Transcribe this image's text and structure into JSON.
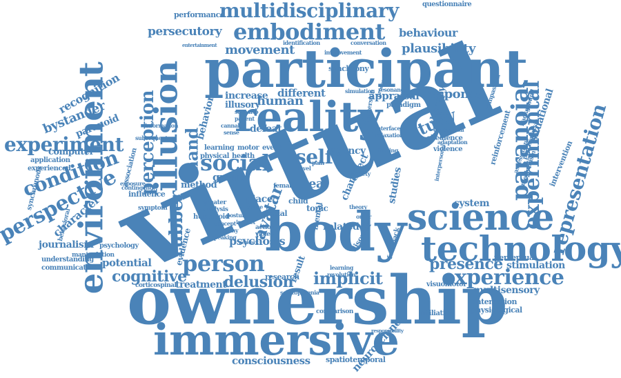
{
  "color": "#4a83b8",
  "words": [
    {
      "text": "virtual",
      "size": "xxl",
      "orient": "diag"
    },
    {
      "text": "ownership",
      "size": "xl",
      "orient": "h"
    },
    {
      "text": "participant",
      "size": "xl",
      "orient": "h"
    },
    {
      "text": "body",
      "size": "xl",
      "orient": "h"
    },
    {
      "text": "immersive",
      "size": "l",
      "orient": "h"
    },
    {
      "text": "reality",
      "size": "l",
      "orient": "h"
    },
    {
      "text": "environment",
      "size": "l",
      "orient": "v-up"
    },
    {
      "text": "illusion",
      "size": "l",
      "orient": "v-up"
    },
    {
      "text": "technology",
      "size": "l",
      "orient": "h"
    },
    {
      "text": "science",
      "size": "l",
      "orient": "h"
    },
    {
      "text": "embodiment",
      "size": "m",
      "orient": "h"
    },
    {
      "text": "multidisciplinary",
      "size": "m",
      "orient": "h"
    },
    {
      "text": "paranoia",
      "size": "m",
      "orient": "v-down"
    },
    {
      "text": "experimental",
      "size": "m",
      "orient": "v-up"
    },
    {
      "text": "representation",
      "size": "m",
      "orient": "v-up"
    },
    {
      "text": "experience",
      "size": "m",
      "orient": "h"
    },
    {
      "text": "person",
      "size": "m",
      "orient": "h"
    },
    {
      "text": "social",
      "size": "m",
      "orient": "h"
    },
    {
      "text": "perspective",
      "size": "m",
      "orient": "v-up"
    },
    {
      "text": "experiment",
      "size": "m",
      "orient": "h"
    },
    {
      "text": "condition",
      "size": "m",
      "orient": "v-up"
    },
    {
      "text": "perception",
      "size": "m",
      "orient": "v-up"
    },
    {
      "text": "self",
      "size": "m",
      "orient": "h"
    },
    {
      "text": "presence",
      "size": "m",
      "orient": "h"
    },
    {
      "text": "rubber",
      "size": "m",
      "orient": "v-up"
    },
    {
      "text": "study",
      "size": "m",
      "orient": "v-up"
    },
    {
      "text": "hand",
      "size": "m",
      "orient": "v-up"
    },
    {
      "text": "avatar",
      "size": "m",
      "orient": "v-up"
    },
    {
      "text": "cognitive",
      "size": "m",
      "orient": "h"
    },
    {
      "text": "delusion",
      "size": "m",
      "orient": "h"
    },
    {
      "text": "implicit",
      "size": "m",
      "orient": "h"
    },
    {
      "text": "consciousness",
      "size": "s",
      "orient": "h"
    },
    {
      "text": "neuroscience",
      "size": "s",
      "orient": "v-up"
    },
    {
      "text": "psychosis",
      "size": "s",
      "orient": "h"
    },
    {
      "text": "human",
      "size": "s",
      "orient": "h"
    },
    {
      "text": "movement",
      "size": "s",
      "orient": "h"
    },
    {
      "text": "plausibility",
      "size": "s",
      "orient": "h"
    },
    {
      "text": "persecutory",
      "size": "s",
      "orient": "h"
    },
    {
      "text": "behaviour",
      "size": "s",
      "orient": "h"
    },
    {
      "text": "questionnaire",
      "size": "xs",
      "orient": "h"
    },
    {
      "text": "performance",
      "size": "xs",
      "orient": "h"
    },
    {
      "text": "recognition",
      "size": "s",
      "orient": "v-up"
    },
    {
      "text": "bystander",
      "size": "s",
      "orient": "h"
    },
    {
      "text": "paranoid",
      "size": "s",
      "orient": "h"
    },
    {
      "text": "computer",
      "size": "s",
      "orient": "h"
    },
    {
      "text": "application",
      "size": "xs",
      "orient": "h"
    },
    {
      "text": "experienced",
      "size": "xs",
      "orient": "h"
    },
    {
      "text": "character",
      "size": "s",
      "orient": "v-up"
    },
    {
      "text": "journalism",
      "size": "s",
      "orient": "h"
    },
    {
      "text": "psychology",
      "size": "xs",
      "orient": "h"
    },
    {
      "text": "understanding",
      "size": "xs",
      "orient": "h"
    },
    {
      "text": "communication",
      "size": "xs",
      "orient": "h"
    },
    {
      "text": "potential",
      "size": "s",
      "orient": "h"
    },
    {
      "text": "treatment",
      "size": "s",
      "orient": "h"
    },
    {
      "text": "evidence",
      "size": "s",
      "orient": "v-up"
    },
    {
      "text": "influence",
      "size": "xs",
      "orient": "h"
    },
    {
      "text": "method",
      "size": "s",
      "orient": "h"
    },
    {
      "text": "group",
      "size": "s",
      "orient": "h"
    },
    {
      "text": "real",
      "size": "s",
      "orient": "h"
    },
    {
      "text": "agency",
      "size": "s",
      "orient": "h"
    },
    {
      "text": "increase",
      "size": "s",
      "orient": "h"
    },
    {
      "text": "different",
      "size": "s",
      "orient": "h"
    },
    {
      "text": "illusory",
      "size": "s",
      "orient": "h"
    },
    {
      "text": "defeat",
      "size": "s",
      "orient": "h"
    },
    {
      "text": "response",
      "size": "s",
      "orient": "h"
    },
    {
      "text": "appraisal",
      "size": "s",
      "orient": "h"
    },
    {
      "text": "therapy",
      "size": "s",
      "orient": "v-up"
    },
    {
      "text": "system",
      "size": "s",
      "orient": "h"
    },
    {
      "text": "perceptual",
      "size": "xs",
      "orient": "h"
    },
    {
      "text": "stimulation",
      "size": "xs",
      "orient": "h"
    },
    {
      "text": "multisensory",
      "size": "s",
      "orient": "h"
    },
    {
      "text": "interaction",
      "size": "xs",
      "orient": "h"
    },
    {
      "text": "physiological",
      "size": "xs",
      "orient": "h"
    },
    {
      "text": "visuomotor",
      "size": "xs",
      "orient": "h"
    },
    {
      "text": "situational",
      "size": "s",
      "orient": "v-up"
    },
    {
      "text": "reinforcement",
      "size": "xs",
      "orient": "v-up"
    },
    {
      "text": "intervention",
      "size": "xs",
      "orient": "v-up"
    },
    {
      "text": "violence",
      "size": "xs",
      "orient": "h"
    },
    {
      "text": "obedience",
      "size": "xs",
      "orient": "h"
    },
    {
      "text": "behavior",
      "size": "s",
      "orient": "v-up"
    },
    {
      "text": "studies",
      "size": "s",
      "orient": "v-up"
    },
    {
      "text": "change",
      "size": "s",
      "orient": "v-up"
    },
    {
      "text": "related",
      "size": "s",
      "orient": "h"
    },
    {
      "text": "place",
      "size": "s",
      "orient": "h"
    },
    {
      "text": "topic",
      "size": "xs",
      "orient": "h"
    },
    {
      "text": "result",
      "size": "s",
      "orient": "v-up"
    },
    {
      "text": "research",
      "size": "xs",
      "orient": "h"
    },
    {
      "text": "disorder",
      "size": "xs",
      "orient": "v-up"
    },
    {
      "text": "synchrony",
      "size": "xs",
      "orient": "h"
    },
    {
      "text": "paradigm",
      "size": "xs",
      "orient": "h"
    },
    {
      "text": "learning",
      "size": "xs",
      "orient": "h"
    },
    {
      "text": "motor",
      "size": "xs",
      "orient": "h"
    },
    {
      "text": "event",
      "size": "xs",
      "orient": "h"
    },
    {
      "text": "physical",
      "size": "xs",
      "orient": "h"
    },
    {
      "text": "health",
      "size": "xs",
      "orient": "h"
    },
    {
      "text": "association",
      "size": "xs",
      "orient": "v-up"
    },
    {
      "text": "humanoid",
      "size": "xs",
      "orient": "h"
    },
    {
      "text": "corticospinal",
      "size": "xs",
      "orient": "h"
    },
    {
      "text": "comparison",
      "size": "xs",
      "orient": "h"
    },
    {
      "text": "affiliation",
      "size": "xs",
      "orient": "h"
    },
    {
      "text": "spatiotemporal",
      "size": "xs",
      "orient": "h"
    },
    {
      "text": "feedback",
      "size": "xs",
      "orient": "v-up"
    },
    {
      "text": "compassion",
      "size": "xs",
      "orient": "v-up"
    },
    {
      "text": "background",
      "size": "xs",
      "orient": "v-up"
    },
    {
      "text": "psychophysic",
      "size": "xs",
      "orient": "v-up"
    },
    {
      "text": "mechanism",
      "size": "xs",
      "orient": "v-up"
    },
    {
      "text": "assessment",
      "size": "xs",
      "orient": "v-up"
    },
    {
      "text": "symptom",
      "size": "xs",
      "orient": "h"
    },
    {
      "text": "synchronous",
      "size": "xs",
      "orient": "v-up"
    },
    {
      "text": "manipulation",
      "size": "xs",
      "orient": "h"
    },
    {
      "text": "behavioral",
      "size": "xs",
      "orient": "v-up"
    },
    {
      "text": "identification",
      "size": "xs",
      "orient": "h"
    },
    {
      "text": "conversation",
      "size": "xs",
      "orient": "h"
    },
    {
      "text": "improvement",
      "size": "xs",
      "orient": "h"
    },
    {
      "text": "simulation",
      "size": "xs",
      "orient": "h"
    },
    {
      "text": "resonance",
      "size": "xs",
      "orient": "h"
    },
    {
      "text": "exposure",
      "size": "xs",
      "orient": "h"
    },
    {
      "text": "contingency",
      "size": "xs",
      "orient": "h"
    },
    {
      "text": "child",
      "size": "xs",
      "orient": "h"
    },
    {
      "text": "greater",
      "size": "xs",
      "orient": "h"
    },
    {
      "text": "analysis",
      "size": "xs",
      "orient": "h"
    },
    {
      "text": "concept",
      "size": "xs",
      "orient": "h"
    },
    {
      "text": "empathy",
      "size": "xs",
      "orient": "h"
    },
    {
      "text": "speaking",
      "size": "xs",
      "orient": "h"
    },
    {
      "text": "action",
      "size": "xs",
      "orient": "h"
    },
    {
      "text": "violent",
      "size": "xs",
      "orient": "h"
    },
    {
      "text": "female",
      "size": "xs",
      "orient": "h"
    },
    {
      "text": "racial",
      "size": "xs",
      "orient": "h"
    },
    {
      "text": "space",
      "size": "xs",
      "orient": "h"
    },
    {
      "text": "conceptual",
      "size": "xs",
      "orient": "h"
    },
    {
      "text": "adaptation",
      "size": "xs",
      "orient": "h"
    },
    {
      "text": "interface",
      "size": "xs",
      "orient": "h"
    },
    {
      "text": "relaxation",
      "size": "xs",
      "orient": "h"
    },
    {
      "text": "immersion",
      "size": "xs",
      "orient": "v-up"
    },
    {
      "text": "finding",
      "size": "xs",
      "orient": "h"
    },
    {
      "text": "schizophrenia",
      "size": "xs",
      "orient": "h"
    },
    {
      "text": "responsibility",
      "size": "xs",
      "orient": "h"
    },
    {
      "text": "entertainment",
      "size": "xs",
      "orient": "h"
    },
    {
      "text": "information",
      "size": "xs",
      "orient": "h"
    },
    {
      "text": "subsequent",
      "size": "xs",
      "orient": "h"
    },
    {
      "text": "scenario",
      "size": "xs",
      "orient": "h"
    },
    {
      "text": "patient",
      "size": "xs",
      "orient": "h"
    },
    {
      "text": "cannabis",
      "size": "xs",
      "orient": "h"
    },
    {
      "text": "sense",
      "size": "xs",
      "orient": "h"
    },
    {
      "text": "posture",
      "size": "xs",
      "orient": "h"
    },
    {
      "text": "impact",
      "size": "xs",
      "orient": "h"
    },
    {
      "text": "processing",
      "size": "xs",
      "orient": "v-up"
    },
    {
      "text": "interpersonal",
      "size": "xs",
      "orient": "v-up"
    },
    {
      "text": "effect",
      "size": "s",
      "orient": "v-up"
    },
    {
      "text": "revolution",
      "size": "xs",
      "orient": "h"
    },
    {
      "text": "learning",
      "size": "xs",
      "orient": "h"
    },
    {
      "text": "network",
      "size": "xs",
      "orient": "h"
    },
    {
      "text": "mental",
      "size": "xs",
      "orient": "v-up"
    },
    {
      "text": "theory",
      "size": "xs",
      "orient": "h"
    },
    {
      "text": "level",
      "size": "xs",
      "orient": "h"
    },
    {
      "text": "pain",
      "size": "xs",
      "orient": "h"
    },
    {
      "text": "order",
      "size": "xs",
      "orient": "h"
    },
    {
      "text": "anxiety",
      "size": "xs",
      "orient": "h"
    }
  ]
}
